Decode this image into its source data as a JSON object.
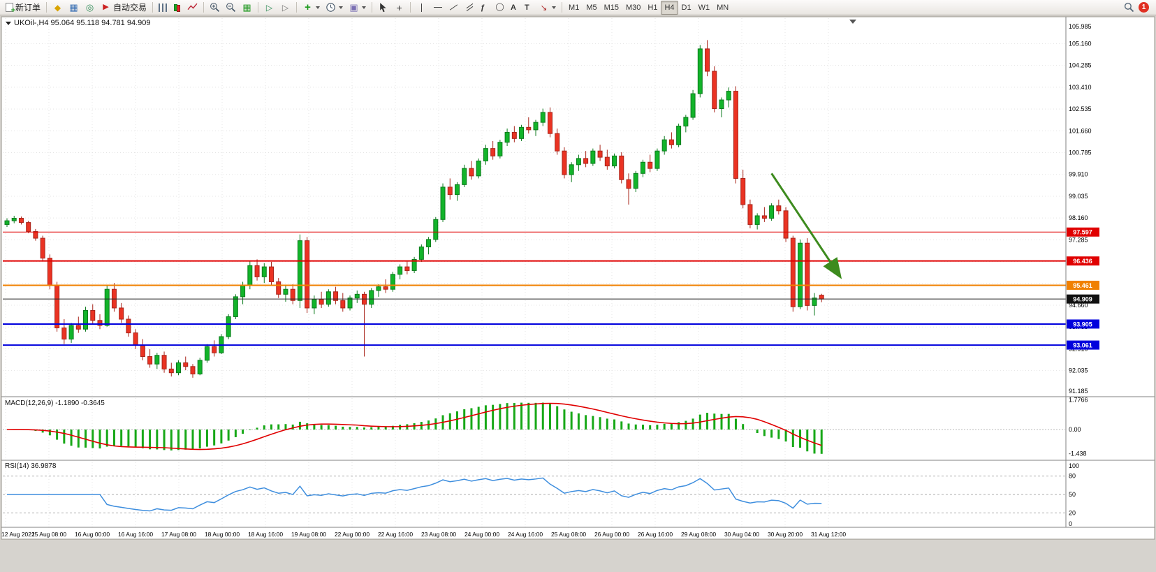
{
  "toolbar": {
    "new_order_label": "新订单",
    "autotrading_label": "自动交易",
    "glyphs": {
      "fibonacci": "ƒ",
      "text_tool": "A",
      "label_tool": "T"
    },
    "timeframes": [
      "M1",
      "M5",
      "M15",
      "M30",
      "H1",
      "H4",
      "D1",
      "W1",
      "MN"
    ],
    "active_timeframe": "H4",
    "notification_count": "1",
    "icon_names": [
      "new-order-icon",
      "market-watch-icon",
      "data-window-icon",
      "navigator-icon",
      "autotrading-icon",
      "bars-chart-icon",
      "candlestick-chart-icon",
      "line-chart-icon",
      "zoom-in-icon",
      "zoom-out-icon",
      "tile-windows-icon",
      "auto-scroll-icon",
      "chart-shift-icon",
      "indicators-plus-icon",
      "periods-clock-icon",
      "template-icon",
      "cursor-icon",
      "crosshair-icon",
      "vertical-line-icon",
      "horizontal-line-icon",
      "trendline-icon",
      "channel-icon",
      "fibonacci-icon",
      "shapes-icon",
      "text-icon",
      "label-icon",
      "arrow-tool-icon",
      "search-icon",
      "notification-badge"
    ]
  },
  "chart": {
    "title": "UKOil-,H4 95.064 95.118 94.781 94.909",
    "symbol": "UKOil-",
    "period": "H4",
    "open": "95.064",
    "high": "95.118",
    "low": "94.781",
    "close": "94.909",
    "price_axis": {
      "max": 105.985,
      "min": 91.185,
      "max_label": "105.985",
      "min_label": "91.185",
      "grid_anchor": 94.66,
      "grid_step": 0.875
    },
    "hlines": [
      {
        "value": 97.597,
        "label": "97.597",
        "color": "#E00000",
        "width": 1
      },
      {
        "value": 96.436,
        "label": "96.436",
        "color": "#E00000",
        "width": 2
      },
      {
        "value": 95.461,
        "label": "95.461",
        "color": "#F08000",
        "width": 2
      },
      {
        "value": 93.905,
        "label": "93.905",
        "color": "#0000DD",
        "width": 2
      },
      {
        "value": 93.061,
        "label": "93.061",
        "color": "#0000DD",
        "width": 2
      }
    ],
    "bid_line": {
      "value": 94.909,
      "label": "94.909",
      "color": "#2A2A2A"
    },
    "trend_arrow": {
      "from_index": 107,
      "from_price": 99.95,
      "to_index": 116.5,
      "to_price": 95.85,
      "color": "#3D8B1E"
    },
    "time_labels": [
      "12 Aug 2022",
      "15 Aug 08:00",
      "16 Aug 00:00",
      "16 Aug 16:00",
      "17 Aug 08:00",
      "18 Aug 00:00",
      "18 Aug 16:00",
      "19 Aug 08:00",
      "22 Aug 00:00",
      "22 Aug 16:00",
      "23 Aug 08:00",
      "24 Aug 00:00",
      "24 Aug 16:00",
      "25 Aug 08:00",
      "26 Aug 00:00",
      "26 Aug 16:00",
      "29 Aug 08:00",
      "30 Aug 04:00",
      "30 Aug 20:00",
      "31 Aug 12:00"
    ],
    "colors": {
      "background": "#FFFFFF",
      "grid": "#E4E4E4",
      "bull": "#12B42A",
      "bull_border": "#0B7A1C",
      "bear": "#EA3323",
      "bear_border": "#A8241A",
      "macd_histogram": "#17A817",
      "macd_signal": "#E00000",
      "rsi_line": "#3E8EDE"
    }
  },
  "indicators": {
    "macd": {
      "label": "MACD(12,26,9) -1.1890 -0.3645",
      "name": "MACD(12,26,9)",
      "value_main": "-1.1890",
      "value_signal": "-0.3645",
      "axis_labels": [
        "1.7766",
        "0.00",
        "-1.438"
      ],
      "axis_values": [
        1.7766,
        0,
        -1.438
      ]
    },
    "rsi": {
      "label": "RSI(14) 36.9878",
      "name": "RSI(14)",
      "value": "36.9878",
      "axis_labels": [
        "100",
        "80",
        "50",
        "20",
        "0"
      ],
      "axis_values": [
        100,
        80,
        50,
        20,
        0
      ],
      "levels": [
        80,
        50,
        20
      ]
    }
  },
  "chart_data": {
    "type": "candlestick",
    "symbol": "UKOil-",
    "timeframe": "H4",
    "x_range": [
      "12 Aug 2022",
      "31 Aug 2022 12:00"
    ],
    "y_range": [
      91.185,
      105.985
    ],
    "last_ohlc": {
      "open": 95.064,
      "high": 95.118,
      "low": 94.781,
      "close": 94.909
    },
    "ohlc": [
      [
        97.9,
        98.15,
        97.8,
        98.05
      ],
      [
        98.05,
        98.25,
        97.95,
        98.15
      ],
      [
        98.15,
        98.22,
        97.9,
        97.98
      ],
      [
        97.98,
        98.05,
        97.55,
        97.62
      ],
      [
        97.62,
        97.72,
        97.25,
        97.35
      ],
      [
        97.35,
        97.45,
        96.42,
        96.55
      ],
      [
        96.55,
        96.7,
        95.3,
        95.45
      ],
      [
        95.45,
        95.6,
        93.6,
        93.75
      ],
      [
        93.75,
        94.1,
        93.1,
        93.3
      ],
      [
        93.3,
        93.95,
        93.15,
        93.85
      ],
      [
        93.85,
        94.2,
        93.55,
        93.7
      ],
      [
        93.7,
        94.6,
        93.6,
        94.45
      ],
      [
        94.45,
        94.7,
        93.9,
        94.05
      ],
      [
        94.05,
        94.3,
        93.7,
        93.85
      ],
      [
        93.85,
        95.45,
        93.8,
        95.3
      ],
      [
        95.3,
        95.55,
        94.4,
        94.55
      ],
      [
        94.55,
        94.75,
        93.95,
        94.1
      ],
      [
        94.1,
        94.25,
        93.4,
        93.55
      ],
      [
        93.55,
        93.7,
        92.9,
        93.05
      ],
      [
        93.05,
        93.3,
        92.45,
        92.6
      ],
      [
        92.6,
        92.9,
        92.15,
        92.3
      ],
      [
        92.3,
        92.75,
        92.1,
        92.65
      ],
      [
        92.65,
        92.8,
        91.95,
        92.1
      ],
      [
        92.1,
        92.35,
        91.8,
        91.95
      ],
      [
        91.95,
        92.45,
        91.85,
        92.35
      ],
      [
        92.35,
        92.6,
        92.05,
        92.2
      ],
      [
        92.2,
        92.3,
        91.75,
        91.9
      ],
      [
        91.9,
        92.55,
        91.85,
        92.45
      ],
      [
        92.45,
        93.1,
        92.35,
        93.0
      ],
      [
        93.0,
        93.25,
        92.6,
        92.75
      ],
      [
        92.75,
        93.5,
        92.7,
        93.4
      ],
      [
        93.4,
        94.3,
        93.3,
        94.2
      ],
      [
        94.2,
        95.1,
        94.1,
        95.0
      ],
      [
        95.0,
        95.6,
        94.7,
        95.45
      ],
      [
        95.45,
        96.45,
        95.3,
        96.25
      ],
      [
        96.25,
        96.5,
        95.65,
        95.8
      ],
      [
        95.8,
        96.35,
        95.55,
        96.2
      ],
      [
        96.2,
        96.4,
        95.45,
        95.6
      ],
      [
        95.6,
        95.75,
        94.95,
        95.1
      ],
      [
        95.1,
        95.45,
        94.8,
        95.3
      ],
      [
        95.3,
        95.5,
        94.7,
        94.85
      ],
      [
        94.85,
        97.5,
        94.55,
        97.25
      ],
      [
        97.25,
        97.4,
        94.35,
        94.55
      ],
      [
        94.55,
        95.05,
        94.3,
        94.9
      ],
      [
        94.9,
        95.2,
        94.55,
        94.7
      ],
      [
        94.7,
        95.3,
        94.6,
        95.2
      ],
      [
        95.2,
        95.4,
        94.7,
        94.85
      ],
      [
        94.85,
        95.15,
        94.4,
        94.55
      ],
      [
        94.55,
        95.05,
        94.45,
        94.95
      ],
      [
        94.95,
        95.25,
        94.75,
        95.1
      ],
      [
        95.1,
        95.2,
        92.6,
        94.7
      ],
      [
        94.7,
        95.35,
        94.55,
        95.25
      ],
      [
        95.25,
        95.5,
        95.0,
        95.4
      ],
      [
        95.4,
        95.7,
        95.15,
        95.3
      ],
      [
        95.3,
        96.0,
        95.2,
        95.9
      ],
      [
        95.9,
        96.3,
        95.7,
        96.2
      ],
      [
        96.2,
        96.45,
        95.9,
        96.05
      ],
      [
        96.05,
        96.6,
        95.95,
        96.5
      ],
      [
        96.5,
        97.1,
        96.4,
        97.0
      ],
      [
        97.0,
        97.4,
        96.7,
        97.3
      ],
      [
        97.3,
        98.2,
        97.2,
        98.1
      ],
      [
        98.1,
        99.55,
        98.0,
        99.4
      ],
      [
        99.4,
        99.75,
        98.9,
        99.1
      ],
      [
        99.1,
        99.6,
        98.85,
        99.5
      ],
      [
        99.5,
        100.3,
        99.4,
        100.15
      ],
      [
        100.15,
        100.45,
        99.7,
        99.85
      ],
      [
        99.85,
        100.55,
        99.75,
        100.45
      ],
      [
        100.45,
        101.1,
        100.3,
        100.95
      ],
      [
        100.95,
        101.25,
        100.5,
        100.65
      ],
      [
        100.65,
        101.3,
        100.55,
        101.2
      ],
      [
        101.2,
        101.75,
        101.05,
        101.6
      ],
      [
        101.6,
        101.85,
        101.2,
        101.35
      ],
      [
        101.35,
        101.9,
        101.25,
        101.8
      ],
      [
        101.8,
        102.2,
        101.55,
        101.7
      ],
      [
        101.7,
        102.1,
        101.45,
        102.0
      ],
      [
        102.0,
        102.55,
        101.85,
        102.4
      ],
      [
        102.4,
        102.6,
        101.4,
        101.55
      ],
      [
        101.55,
        101.75,
        100.7,
        100.85
      ],
      [
        100.85,
        101.0,
        99.75,
        99.9
      ],
      [
        99.9,
        100.4,
        99.6,
        100.3
      ],
      [
        100.3,
        100.7,
        100.05,
        100.55
      ],
      [
        100.55,
        100.85,
        100.2,
        100.35
      ],
      [
        100.35,
        100.95,
        100.25,
        100.85
      ],
      [
        100.85,
        101.1,
        100.45,
        100.6
      ],
      [
        100.6,
        100.9,
        100.1,
        100.25
      ],
      [
        100.25,
        100.75,
        100.15,
        100.65
      ],
      [
        100.65,
        100.8,
        99.55,
        99.7
      ],
      [
        99.7,
        99.95,
        98.7,
        99.35
      ],
      [
        99.35,
        100.05,
        99.2,
        99.95
      ],
      [
        99.95,
        100.5,
        99.8,
        100.4
      ],
      [
        100.4,
        100.7,
        100.0,
        100.15
      ],
      [
        100.15,
        100.95,
        100.05,
        100.85
      ],
      [
        100.85,
        101.45,
        100.7,
        101.3
      ],
      [
        101.3,
        101.6,
        100.95,
        101.1
      ],
      [
        101.1,
        101.95,
        101.0,
        101.85
      ],
      [
        101.85,
        102.3,
        101.6,
        102.2
      ],
      [
        102.2,
        103.3,
        102.1,
        103.15
      ],
      [
        103.15,
        105.1,
        103.0,
        104.95
      ],
      [
        104.95,
        105.3,
        103.85,
        104.05
      ],
      [
        104.05,
        104.25,
        102.4,
        102.55
      ],
      [
        102.55,
        103.0,
        102.2,
        102.9
      ],
      [
        102.9,
        103.4,
        102.6,
        103.25
      ],
      [
        103.25,
        103.45,
        99.55,
        99.75
      ],
      [
        99.75,
        100.1,
        98.55,
        98.7
      ],
      [
        98.7,
        98.9,
        97.75,
        97.9
      ],
      [
        97.9,
        98.35,
        97.7,
        98.25
      ],
      [
        98.25,
        98.6,
        98.0,
        98.15
      ],
      [
        98.15,
        98.75,
        98.05,
        98.65
      ],
      [
        98.65,
        98.9,
        98.3,
        98.45
      ],
      [
        98.45,
        98.6,
        97.2,
        97.35
      ],
      [
        97.35,
        97.45,
        94.4,
        94.6
      ],
      [
        94.6,
        97.3,
        94.5,
        97.15
      ],
      [
        97.15,
        97.35,
        94.45,
        94.65
      ],
      [
        94.65,
        95.15,
        94.25,
        94.95
      ],
      [
        95.064,
        95.118,
        94.781,
        94.909
      ]
    ]
  }
}
